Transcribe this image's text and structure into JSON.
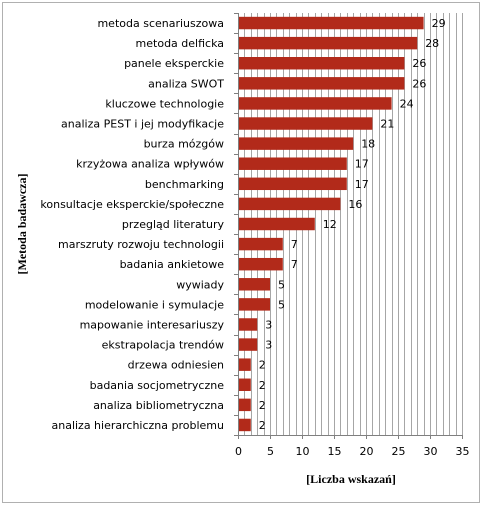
{
  "chart_data": {
    "type": "bar",
    "orientation": "horizontal",
    "categories": [
      "metoda scenariuszowa",
      "metoda delficka",
      "panele eksperckie",
      "analiza SWOT",
      "kluczowe technologie",
      "analiza PEST i jej modyfikacje",
      "burza mózgów",
      "krzyżowa analiza  wpływów",
      "benchmarking",
      "konsultacje eksperckie/społeczne",
      "przegląd literatury",
      "marszruty rozwoju technologii",
      "badania ankietowe",
      "wywiady",
      "modelowanie i symulacje",
      "mapowanie interesariuszy",
      "ekstrapolacja trendów",
      "drzewa odniesien",
      "badania socjometryczne",
      "analiza bibliometryczna",
      "analiza hierarchiczna problemu"
    ],
    "values": [
      29,
      28,
      26,
      26,
      24,
      21,
      18,
      17,
      17,
      16,
      12,
      7,
      7,
      5,
      5,
      3,
      3,
      2,
      2,
      2,
      2
    ],
    "value_labels": [
      "29",
      "28",
      "26",
      "26",
      "24",
      "21",
      "18",
      "17",
      "17",
      "16",
      "12",
      "7",
      "7",
      "5",
      "5",
      "3",
      "3",
      "2",
      "2",
      "2",
      "2"
    ],
    "xlabel": "[Liczba wskazań]",
    "ylabel": "[Metoda  badawcza]",
    "xlim": [
      0,
      35
    ],
    "xticks": [
      "0",
      "5",
      "10",
      "15",
      "20",
      "25",
      "30",
      "35"
    ],
    "grid": "vertical",
    "bar_color": "#b22a1a",
    "legend": "none"
  }
}
